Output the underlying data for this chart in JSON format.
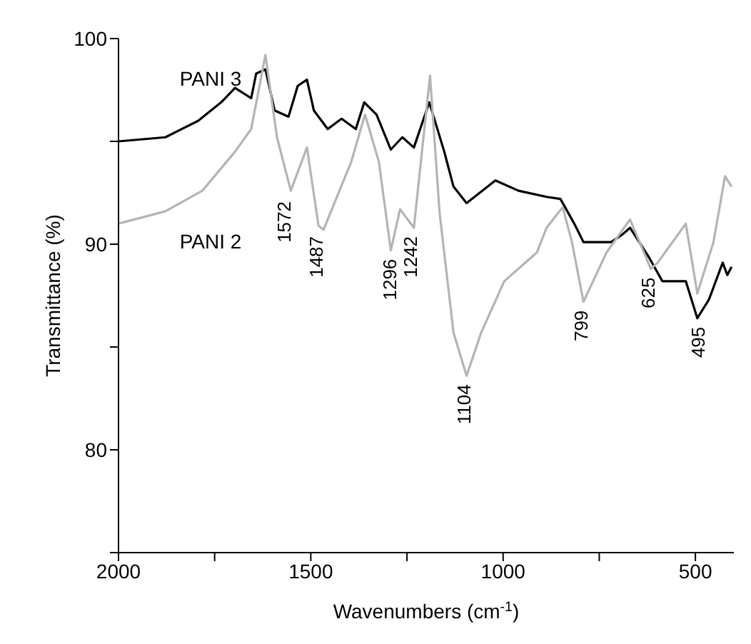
{
  "chart_data": {
    "type": "line",
    "xlabel": "Wavenumbers (cm$^{-1}$)",
    "ylabel": "Transmittance (%)",
    "xlim": [
      2000,
      400
    ],
    "xticks": [
      2000,
      {
        "value": 1750,
        "label": null
      },
      1500,
      {
        "value": 1250,
        "label": null
      },
      1000,
      {
        "value": 750,
        "label": null
      },
      500
    ],
    "ylim": [
      75,
      100
    ],
    "yticks": [
      {
        "value": 75,
        "label": null
      },
      80,
      {
        "value": 85,
        "label": null
      },
      90,
      {
        "value": 95,
        "label": null
      },
      100
    ],
    "grid": false,
    "legend": false,
    "marker": "none",
    "line_style": "solid",
    "series": [
      {
        "name": "PANI 3",
        "color": "#000000",
        "x": [
          2000,
          1878,
          1793,
          1733,
          1697,
          1655,
          1642,
          1618,
          1594,
          1558,
          1534,
          1510,
          1492,
          1456,
          1420,
          1383,
          1361,
          1329,
          1292,
          1262,
          1232,
          1192,
          1153,
          1129,
          1095,
          1020,
          960,
          887,
          851,
          815,
          791,
          719,
          688,
          670,
          622,
          586,
          525,
          495,
          465,
          429,
          417,
          406
        ],
        "values": [
          95.0,
          95.2,
          96.0,
          96.9,
          97.6,
          97.1,
          98.3,
          98.5,
          96.5,
          96.2,
          97.7,
          98.0,
          96.5,
          95.6,
          96.1,
          95.6,
          96.9,
          96.3,
          94.6,
          95.2,
          94.7,
          96.9,
          94.5,
          92.8,
          92.0,
          93.1,
          92.6,
          92.3,
          92.2,
          91.0,
          90.1,
          90.1,
          90.5,
          90.8,
          89.4,
          88.2,
          88.2,
          86.4,
          87.3,
          89.1,
          88.5,
          88.9
        ]
      },
      {
        "name": "PANI 2",
        "color": "#b4b4b4",
        "x": [
          2000,
          1878,
          1782,
          1697,
          1655,
          1618,
          1588,
          1552,
          1510,
          1480,
          1467,
          1395,
          1359,
          1323,
          1292,
          1268,
          1232,
          1190,
          1165,
          1129,
          1095,
          1057,
          997,
          912,
          887,
          845,
          821,
          791,
          731,
          670,
          616,
          598,
          525,
          495,
          453,
          423,
          406
        ],
        "values": [
          91.0,
          91.6,
          92.6,
          94.5,
          95.6,
          99.2,
          95.2,
          92.6,
          94.7,
          90.9,
          90.7,
          94.0,
          96.3,
          94.0,
          89.7,
          91.7,
          90.8,
          98.2,
          91.5,
          85.7,
          83.6,
          85.7,
          88.2,
          89.6,
          90.8,
          91.8,
          90.1,
          87.2,
          89.6,
          91.2,
          88.8,
          89.1,
          91.0,
          87.6,
          90.1,
          93.3,
          92.8
        ]
      }
    ],
    "annotations": [
      {
        "text": "1572",
        "x": 1572,
        "y": 92.5
      },
      {
        "text": "1487",
        "x": 1487,
        "y": 90.8
      },
      {
        "text": "1296",
        "x": 1296,
        "y": 89.7
      },
      {
        "text": "1242",
        "x": 1242,
        "y": 90.8
      },
      {
        "text": "1104",
        "x": 1104,
        "y": 83.6
      },
      {
        "text": "799",
        "x": 799,
        "y": 87.2
      },
      {
        "text": "625",
        "x": 625,
        "y": 88.8
      },
      {
        "text": "495",
        "x": 495,
        "y": 86.4
      }
    ]
  }
}
